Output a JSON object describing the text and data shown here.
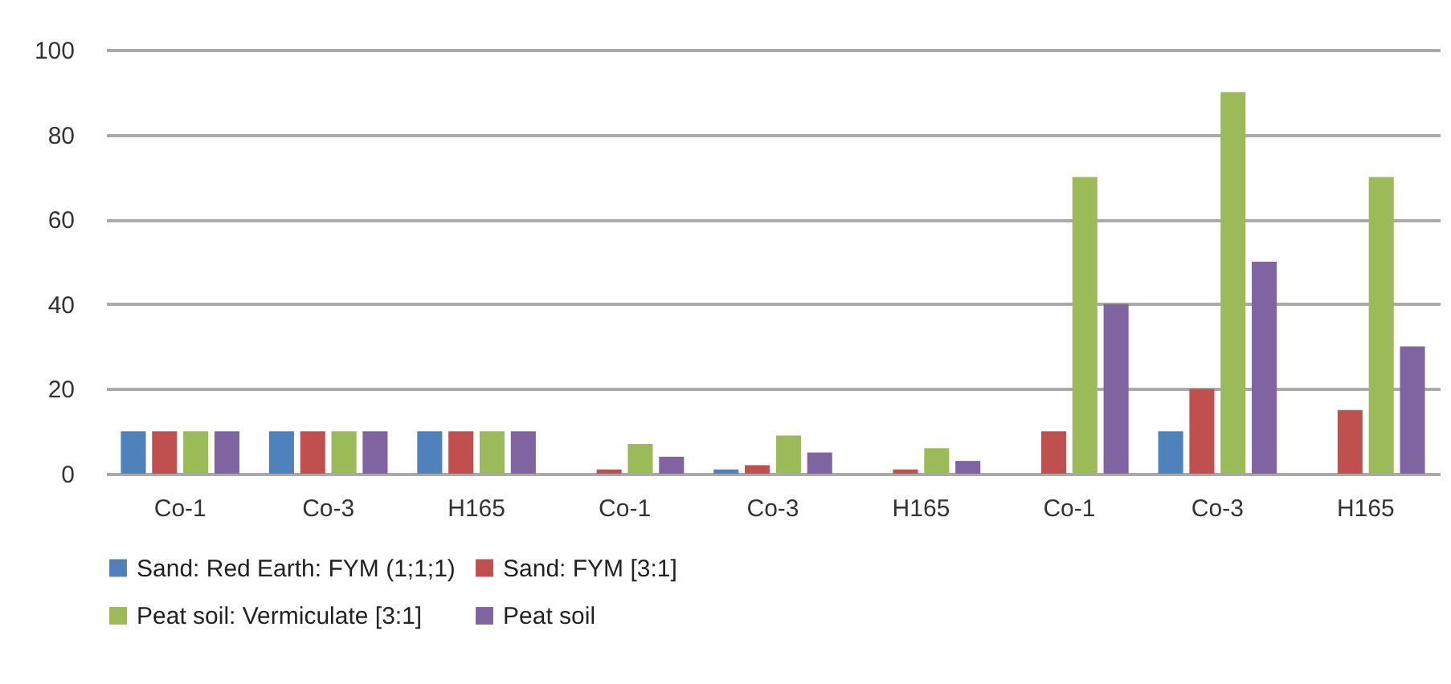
{
  "chart_data": {
    "type": "bar",
    "categories": [
      "Co-1",
      "Co-3",
      "H165",
      "Co-1",
      "Co-3",
      "H165",
      "Co-1",
      "Co-3",
      "H165"
    ],
    "series": [
      {
        "name": "Sand: Red Earth: FYM (1;1;1)",
        "color": "#4f81bd",
        "values": [
          10,
          10,
          10,
          0,
          1,
          0,
          0,
          10,
          0
        ]
      },
      {
        "name": "Sand: FYM [3:1]",
        "color": "#c0504d",
        "values": [
          10,
          10,
          10,
          1,
          2,
          1,
          10,
          20,
          15
        ]
      },
      {
        "name": "Peat soil: Vermiculate [3:1]",
        "color": "#9bbb59",
        "values": [
          10,
          10,
          10,
          7,
          9,
          6,
          70,
          90,
          70
        ]
      },
      {
        "name": "Peat soil",
        "color": "#8064a2",
        "values": [
          10,
          10,
          10,
          4,
          5,
          3,
          40,
          50,
          30
        ]
      }
    ],
    "ylim": [
      0,
      100
    ],
    "yticks": [
      0,
      20,
      40,
      60,
      80,
      100
    ],
    "grid": "y",
    "legend": "bottom"
  }
}
